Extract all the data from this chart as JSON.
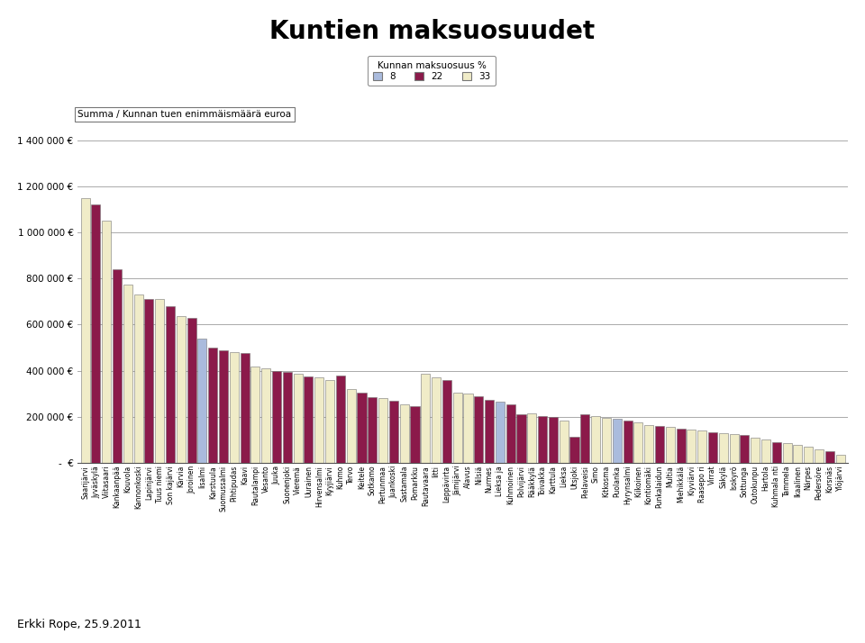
{
  "title": "Kuntien maksuosuudet",
  "legend_title": "Kunnan maksuosuus %",
  "legend_labels": [
    "8",
    "22",
    "33"
  ],
  "ylabel_box": "Summa / Kunnan tuen enimmäismäärä euroa",
  "categories": [
    "Saarijärvi",
    "Jyväskylä",
    "Viitasaari",
    "Kankaanpää",
    "Kouvola",
    "Kannonkoski",
    "Lapinjärvi",
    "Tuus niemi",
    "Son kajärvi",
    "Kärvia",
    "Joroinen",
    "Iisalmi",
    "Karstuula",
    "Suomussalmi",
    "Pihtipudas",
    "Kaavi",
    "Rautalampi",
    "Vesanto",
    "Juuka",
    "Suonenjoki",
    "Vieremä",
    "Uurainen",
    "Hirvensalmi",
    "Kyyjiärvi",
    "Kuhmo",
    "Tervo",
    "Keitele",
    "Sotkamo",
    "Pertunmaa",
    "Juankoski",
    "Sastamala",
    "Pomarkku",
    "Rautavaara",
    "Iitti",
    "Leppävirta",
    "Jämijärvi",
    "Alavus",
    "Nilsiä",
    "Nurmes",
    "Lieksa ja",
    "Kuhmoinen",
    "Polvijärvi",
    "Rääkkylä",
    "Toivakka",
    "Karttula",
    "Lieksa",
    "Utsjoki",
    "Pielaveisi",
    "Simo",
    "Kitkosma",
    "Puolanka",
    "Hyrynsalmi",
    "Kiíkoinen",
    "Kontiomäki",
    "Punkalaidun",
    "Multia",
    "Miehikkälä",
    "Kiyviärvi",
    "Raasepo ri",
    "Virrat",
    "Säkylä",
    "Isokyrö",
    "Sottunga",
    "Outokunpu",
    "Hartola",
    "Kuhmala nti",
    "Tammela",
    "Ikaalinen",
    "Nárpes",
    "Pedersöre",
    "Korsnäs",
    "Ylöjärvi"
  ],
  "values": [
    1150000,
    1120000,
    1050000,
    840000,
    775000,
    730000,
    710000,
    710000,
    680000,
    635000,
    630000,
    540000,
    500000,
    490000,
    480000,
    475000,
    420000,
    410000,
    400000,
    395000,
    385000,
    375000,
    370000,
    360000,
    380000,
    320000,
    305000,
    285000,
    280000,
    270000,
    255000,
    245000,
    385000,
    370000,
    360000,
    305000,
    300000,
    290000,
    275000,
    265000,
    255000,
    210000,
    215000,
    205000,
    200000,
    185000,
    115000,
    210000,
    205000,
    195000,
    190000,
    185000,
    175000,
    165000,
    160000,
    155000,
    150000,
    145000,
    140000,
    135000,
    130000,
    125000,
    120000,
    110000,
    100000,
    90000,
    85000,
    80000,
    70000,
    60000,
    50000,
    35000
  ],
  "colors": [
    "#F0ECC8",
    "#8B1A4A",
    "#F0ECC8",
    "#8B1A4A",
    "#F0ECC8",
    "#F0ECC8",
    "#8B1A4A",
    "#F0ECC8",
    "#8B1A4A",
    "#F0ECC8",
    "#8B1A4A",
    "#AABBDD",
    "#8B1A4A",
    "#8B1A4A",
    "#F0ECC8",
    "#8B1A4A",
    "#F0ECC8",
    "#F0ECC8",
    "#8B1A4A",
    "#8B1A4A",
    "#F0ECC8",
    "#8B1A4A",
    "#F0ECC8",
    "#F0ECC8",
    "#8B1A4A",
    "#F0ECC8",
    "#8B1A4A",
    "#8B1A4A",
    "#F0ECC8",
    "#8B1A4A",
    "#F0ECC8",
    "#8B1A4A",
    "#F0ECC8",
    "#F0ECC8",
    "#8B1A4A",
    "#F0ECC8",
    "#F0ECC8",
    "#8B1A4A",
    "#8B1A4A",
    "#AABBDD",
    "#8B1A4A",
    "#8B1A4A",
    "#F0ECC8",
    "#8B1A4A",
    "#8B1A4A",
    "#F0ECC8",
    "#8B1A4A",
    "#8B1A4A",
    "#F0ECC8",
    "#F0ECC8",
    "#AABBDD",
    "#8B1A4A",
    "#F0ECC8",
    "#F0ECC8",
    "#8B1A4A",
    "#F0ECC8",
    "#8B1A4A",
    "#F0ECC8",
    "#F0ECC8",
    "#8B1A4A",
    "#F0ECC8",
    "#F0ECC8",
    "#8B1A4A",
    "#F0ECC8",
    "#F0ECC8",
    "#8B1A4A",
    "#F0ECC8",
    "#F0ECC8",
    "#F0ECC8",
    "#F0ECC8",
    "#8B1A4A",
    "#F0ECC8"
  ],
  "color_8": "#AABBDD",
  "color_22": "#8B1A4A",
  "color_33": "#F0ECC8",
  "yticks": [
    0,
    200000,
    400000,
    600000,
    800000,
    1000000,
    1200000,
    1400000
  ],
  "ytick_labels": [
    "-  €",
    "200 000 €",
    "400 000 €",
    "600 000 €",
    "800 000 €",
    "1 000 000 €",
    "1 200 000 €",
    "1 400 000 €"
  ],
  "footer_left": "Erkki Rope, 25.9.2011",
  "ylim": [
    0,
    1450000
  ],
  "grid_color": "#AAAAAA",
  "bar_edge_color": "#777777",
  "background_color": "#FFFFFF"
}
